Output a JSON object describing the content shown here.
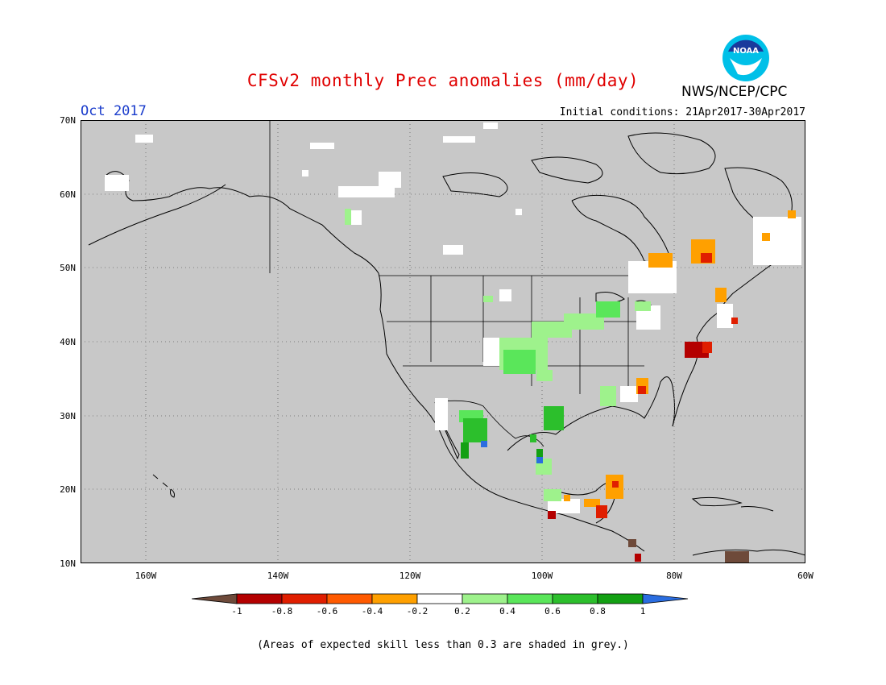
{
  "title": "CFSv2 monthly Prec anomalies (mm/day)",
  "month_label": "Oct 2017",
  "initial_conditions": "Initial conditions: 21Apr2017-30Apr2017",
  "org_label": "NWS/NCEP/CPC",
  "logo_text": "NOAA",
  "lat_labels": [
    "70N",
    "60N",
    "50N",
    "40N",
    "30N",
    "20N",
    "10N"
  ],
  "lon_labels": [
    "160W",
    "140W",
    "120W",
    "100W",
    "80W",
    "60W"
  ],
  "colorbar": {
    "ticks": [
      "-1",
      "-0.8",
      "-0.6",
      "-0.4",
      "-0.2",
      "0.2",
      "0.4",
      "0.6",
      "0.8",
      "1"
    ],
    "colors": [
      "#6e4a3a",
      "#b40000",
      "#e01e00",
      "#ff5a00",
      "#ffa000",
      "#ffffff",
      "#9ef28c",
      "#5ae65a",
      "#2cbf2c",
      "#13a013",
      "#2a6de0"
    ]
  },
  "skill_note": "(Areas of expected skill less than 0.3 are shaded in grey.)",
  "map_colors": {
    "grey": "#c8c8c8",
    "grid": "#666666"
  }
}
